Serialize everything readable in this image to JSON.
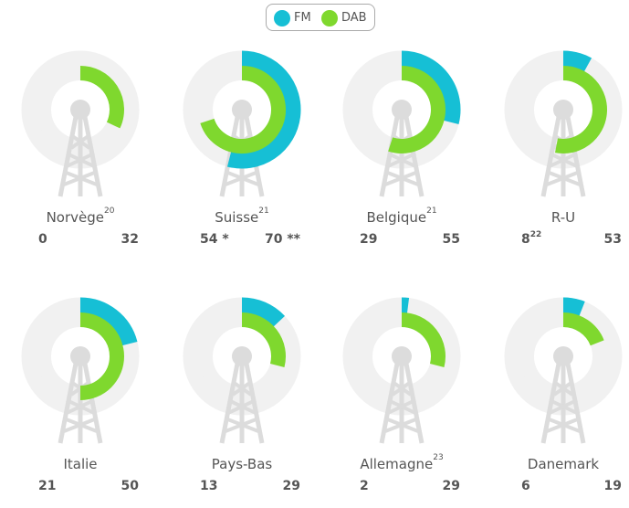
{
  "legend": [
    {
      "label": "FM",
      "color": "#16bfd5"
    },
    {
      "label": "DAB",
      "color": "#7fd82e"
    }
  ],
  "chart_data": {
    "type": "radial-bar",
    "series": [
      {
        "name": "FM",
        "color": "#16bfd5"
      },
      {
        "name": "DAB",
        "color": "#7fd82e"
      }
    ],
    "items": [
      {
        "country": "Norvège",
        "note": "20",
        "fm_label": "0",
        "fm_note": "",
        "dab_label": "32",
        "fm": 0,
        "dab": 32
      },
      {
        "country": "Suisse",
        "note": "21",
        "fm_label": "54 *",
        "fm_note": "",
        "dab_label": "70 **",
        "fm": 54,
        "dab": 70
      },
      {
        "country": "Belgique",
        "note": "21",
        "fm_label": "29",
        "fm_note": "",
        "dab_label": "55",
        "fm": 29,
        "dab": 55
      },
      {
        "country": "R-U",
        "note": "",
        "fm_label": "8",
        "fm_note": "22",
        "dab_label": "53",
        "fm": 8,
        "dab": 53
      },
      {
        "country": "Italie",
        "note": "",
        "fm_label": "21",
        "fm_note": "",
        "dab_label": "50",
        "fm": 21,
        "dab": 50
      },
      {
        "country": "Pays-Bas",
        "note": "",
        "fm_label": "13",
        "fm_note": "",
        "dab_label": "29",
        "fm": 13,
        "dab": 29
      },
      {
        "country": "Allemagne",
        "note": "23",
        "fm_label": "2",
        "fm_note": "",
        "dab_label": "29",
        "fm": 2,
        "dab": 29
      },
      {
        "country": "Danemark",
        "note": "",
        "fm_label": "6",
        "fm_note": "",
        "dab_label": "19",
        "fm": 6,
        "dab": 19
      }
    ],
    "scale_max": 100
  }
}
